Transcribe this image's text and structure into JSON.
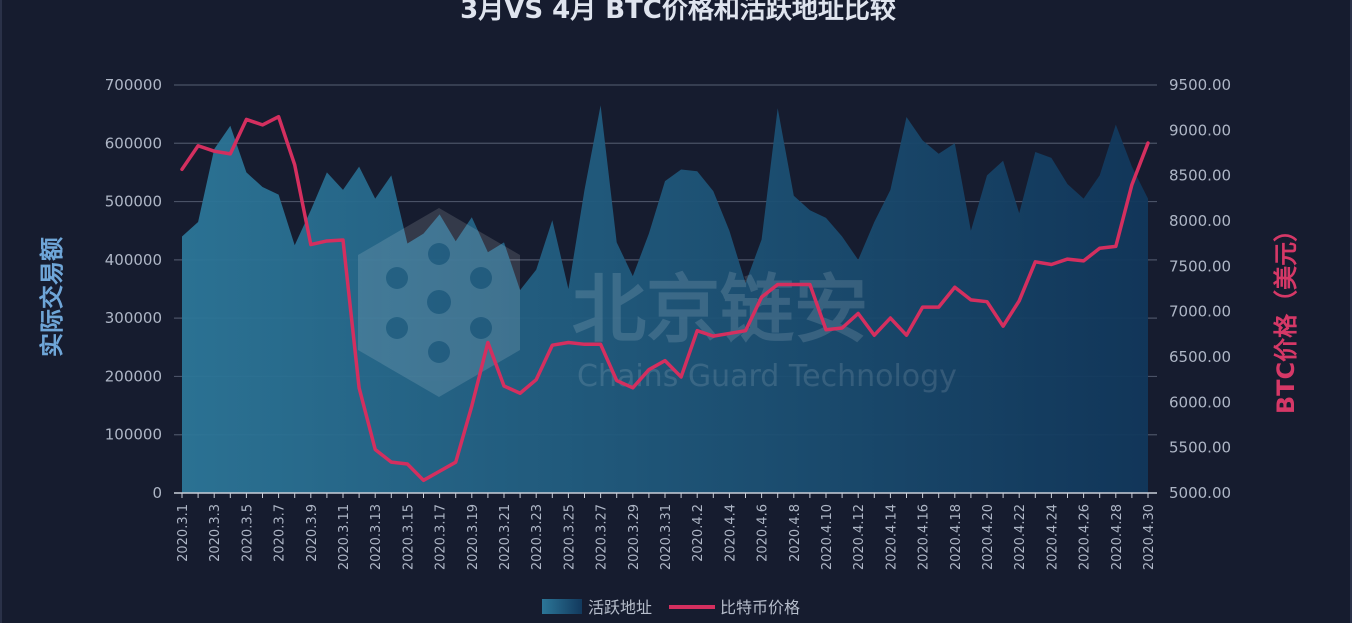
{
  "chart_data": {
    "type": "line",
    "title": "3月VS 4月  BTC价格和活跃地址比较",
    "ylabel_left": "实际交易额",
    "ylabel_right": "BTC价格（美元）",
    "x": [
      "2020.3.1",
      "2020.3.2",
      "2020.3.3",
      "2020.3.4",
      "2020.3.5",
      "2020.3.6",
      "2020.3.7",
      "2020.3.8",
      "2020.3.9",
      "2020.3.10",
      "2020.3.11",
      "2020.3.12",
      "2020.3.13",
      "2020.3.14",
      "2020.3.15",
      "2020.3.16",
      "2020.3.17",
      "2020.3.18",
      "2020.3.19",
      "2020.3.20",
      "2020.3.21",
      "2020.3.22",
      "2020.3.23",
      "2020.3.24",
      "2020.3.25",
      "2020.3.26",
      "2020.3.27",
      "2020.3.28",
      "2020.3.29",
      "2020.3.30",
      "2020.3.31",
      "2020.4.1",
      "2020.4.2",
      "2020.4.3",
      "2020.4.4",
      "2020.4.5",
      "2020.4.6",
      "2020.4.7",
      "2020.4.8",
      "2020.4.9",
      "2020.4.10",
      "2020.4.11",
      "2020.4.12",
      "2020.4.13",
      "2020.4.14",
      "2020.4.15",
      "2020.4.16",
      "2020.4.17",
      "2020.4.18",
      "2020.4.19",
      "2020.4.20",
      "2020.4.21",
      "2020.4.22",
      "2020.4.23",
      "2020.4.24",
      "2020.4.25",
      "2020.4.26",
      "2020.4.27",
      "2020.4.28",
      "2020.4.29",
      "2020.4.30"
    ],
    "x_tick_labels": [
      "2020.3.1",
      "2020.3.3",
      "2020.3.5",
      "2020.3.7",
      "2020.3.9",
      "2020.3.11",
      "2020.3.13",
      "2020.3.15",
      "2020.3.17",
      "2020.3.19",
      "2020.3.21",
      "2020.3.23",
      "2020.3.25",
      "2020.3.27",
      "2020.3.29",
      "2020.3.31",
      "2020.4.2",
      "2020.4.4",
      "2020.4.6",
      "2020.4.8",
      "2020.4.10",
      "2020.4.12",
      "2020.4.14",
      "2020.4.16",
      "2020.4.18",
      "2020.4.20",
      "2020.4.22",
      "2020.4.24",
      "2020.4.26",
      "2020.4.28",
      "2020.4.30"
    ],
    "series": [
      {
        "name": "活跃地址",
        "kind": "area",
        "axis": "left",
        "color": "#2a6f95",
        "values": [
          440000,
          465000,
          590000,
          630000,
          550000,
          525000,
          512000,
          425000,
          485000,
          550000,
          520000,
          560000,
          505000,
          545000,
          428000,
          445000,
          478000,
          432000,
          473000,
          413000,
          430000,
          348000,
          383000,
          468000,
          350000,
          520000,
          665000,
          430000,
          372000,
          445000,
          535000,
          555000,
          552000,
          518000,
          450000,
          360000,
          435000,
          660000,
          510000,
          485000,
          472000,
          440000,
          400000,
          465000,
          520000,
          645000,
          605000,
          582000,
          600000,
          450000,
          545000,
          570000,
          480000,
          585000,
          575000,
          530000,
          505000,
          545000,
          632000,
          560000,
          505000
        ]
      },
      {
        "name": "比特币价格",
        "kind": "line",
        "axis": "right",
        "color": "#d42f5f",
        "values": [
          8570,
          8830,
          8770,
          8740,
          9120,
          9060,
          9150,
          8620,
          7740,
          7780,
          7790,
          6160,
          5480,
          5340,
          5320,
          5140,
          5240,
          5340,
          5960,
          6660,
          6180,
          6100,
          6250,
          6630,
          6660,
          6640,
          6640,
          6240,
          6160,
          6360,
          6460,
          6280,
          6790,
          6730,
          6760,
          6790,
          7160,
          7300,
          7300,
          7300,
          6800,
          6820,
          6980,
          6740,
          6930,
          6740,
          7050,
          7050,
          7270,
          7130,
          7110,
          6840,
          7120,
          7550,
          7520,
          7580,
          7560,
          7700,
          7720,
          8400,
          8860
        ]
      }
    ],
    "ylim_left": [
      0,
      700000
    ],
    "ylim_right": [
      5000,
      9500
    ],
    "y_ticks_left": [
      "0",
      "100000",
      "200000",
      "300000",
      "400000",
      "500000",
      "600000",
      "700000"
    ],
    "y_ticks_right": [
      "5000.00",
      "5500.00",
      "6000.00",
      "6500.00",
      "7000.00",
      "7500.00",
      "8000.00",
      "8500.00",
      "9000.00",
      "9500.00"
    ],
    "legend_position": "bottom-center",
    "grid": true,
    "watermark": {
      "text_cn": "北京链安",
      "text_en": "Chains Guard Technology"
    }
  }
}
